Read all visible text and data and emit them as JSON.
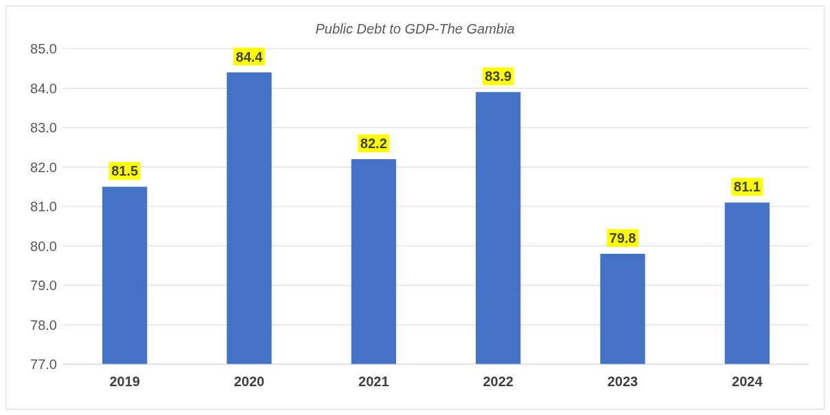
{
  "chart_data": {
    "type": "bar",
    "title": "Public Debt to GDP-The Gambia",
    "categories": [
      "2019",
      "2020",
      "2021",
      "2022",
      "2023",
      "2024"
    ],
    "values": [
      81.5,
      84.4,
      82.2,
      83.9,
      79.8,
      81.1
    ],
    "color": "#4472c4",
    "ylim": [
      77,
      85
    ],
    "yticks": [
      {
        "value": 77,
        "label": "77.0"
      },
      {
        "value": 78,
        "label": "78.0"
      },
      {
        "value": 79,
        "label": "79.0"
      },
      {
        "value": 80,
        "label": "80.0"
      },
      {
        "value": 81,
        "label": "81.0"
      },
      {
        "value": 82,
        "label": "82.0"
      },
      {
        "value": 83,
        "label": "83.0"
      },
      {
        "value": 84,
        "label": "84.0"
      },
      {
        "value": 85,
        "label": "85.0"
      }
    ],
    "grid": "y",
    "data_labels": true,
    "legend": false
  }
}
